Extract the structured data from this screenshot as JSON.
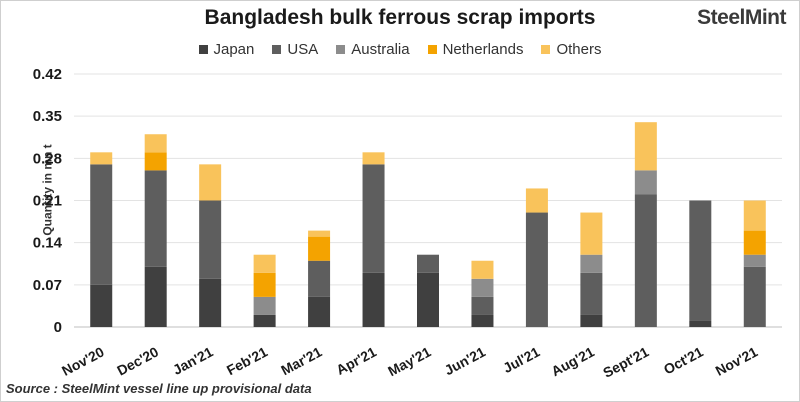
{
  "header": {
    "title": "Bangladesh bulk ferrous scrap imports",
    "brand_main": "SteelMint"
  },
  "footer": {
    "source": "Source : SteelMint vessel line up provisional data"
  },
  "chart_data": {
    "type": "bar",
    "stacked": true,
    "title": "Bangladesh bulk ferrous scrap imports",
    "xlabel": "",
    "ylabel": "Quantity in mn t",
    "ylim": [
      0,
      0.42
    ],
    "yticks": [
      "0",
      "0.07",
      "0.14",
      "0.21",
      "0.28",
      "0.35",
      "0.42"
    ],
    "yticks_values": [
      0,
      0.07,
      0.14,
      0.21,
      0.28,
      0.35,
      0.42
    ],
    "grid": true,
    "legend_position": "top",
    "categories": [
      "Nov'20",
      "Dec'20",
      "Jan'21",
      "Feb'21",
      "Mar'21",
      "Apr'21",
      "May'21",
      "Jun'21",
      "Jul'21",
      "Aug'21",
      "Sept'21",
      "Oct'21",
      "Nov'21"
    ],
    "series": [
      {
        "name": "Japan",
        "color": "#404040",
        "values": [
          0.07,
          0.1,
          0.08,
          0.02,
          0.05,
          0.09,
          0.09,
          0.02,
          0.0,
          0.02,
          0.0,
          0.01,
          0.0
        ]
      },
      {
        "name": "USA",
        "color": "#5e5e5e",
        "values": [
          0.2,
          0.16,
          0.13,
          0.0,
          0.06,
          0.18,
          0.03,
          0.03,
          0.19,
          0.07,
          0.22,
          0.2,
          0.1
        ]
      },
      {
        "name": "Australia",
        "color": "#8c8c8c",
        "values": [
          0.0,
          0.0,
          0.0,
          0.03,
          0.0,
          0.0,
          0.0,
          0.03,
          0.0,
          0.03,
          0.04,
          0.0,
          0.02
        ]
      },
      {
        "name": "Netherlands",
        "color": "#f4a300",
        "values": [
          0.0,
          0.03,
          0.0,
          0.04,
          0.04,
          0.0,
          0.0,
          0.0,
          0.0,
          0.0,
          0.0,
          0.0,
          0.04
        ]
      },
      {
        "name": "Others",
        "color": "#f9c35b",
        "values": [
          0.02,
          0.03,
          0.06,
          0.03,
          0.01,
          0.02,
          0.0,
          0.03,
          0.04,
          0.07,
          0.08,
          0.0,
          0.05
        ]
      }
    ]
  }
}
